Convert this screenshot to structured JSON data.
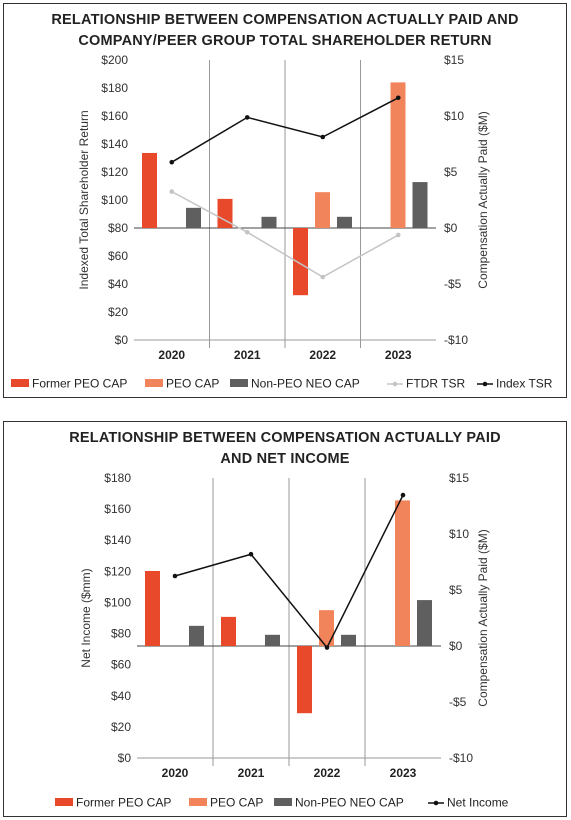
{
  "colors": {
    "former_peo": "#e8492b",
    "peo": "#f2845c",
    "non_peo": "#5f5f5f",
    "ftdr_tsr": "#c4c4c4",
    "index_line": "#111111"
  },
  "chart_data": [
    {
      "type": "bar",
      "title_line1": "RELATIONSHIP BETWEEN COMPENSATION ACTUALLY PAID AND",
      "title_line2": "COMPANY/PEER GROUP TOTAL SHAREHOLDER RETURN",
      "categories": [
        "2020",
        "2021",
        "2022",
        "2023"
      ],
      "left_axis": {
        "label": "Indexed Total Shareholder Return",
        "ylim": [
          0,
          200
        ],
        "ticks": [
          0,
          20,
          40,
          60,
          80,
          100,
          120,
          140,
          160,
          180,
          200
        ],
        "tick_labels": [
          "$0",
          "$20",
          "$40",
          "$60",
          "$80",
          "$100",
          "$120",
          "$140",
          "$160",
          "$180",
          "$200"
        ]
      },
      "right_axis": {
        "label": "Compensation Actually Paid ($M)",
        "ylim": [
          -10,
          15
        ],
        "ticks": [
          -10,
          -5,
          0,
          5,
          10,
          15
        ],
        "tick_labels": [
          "-$10",
          "-$5",
          "$0",
          "$5",
          "$10",
          "$15"
        ]
      },
      "bar_series": [
        {
          "name": "Former PEO CAP",
          "color_key": "former_peo",
          "values": [
            6.7,
            2.6,
            -6.0,
            null
          ]
        },
        {
          "name": "PEO CAP",
          "color_key": "peo",
          "values": [
            null,
            null,
            3.2,
            13.0
          ]
        },
        {
          "name": "Non-PEO NEO CAP",
          "color_key": "non_peo",
          "values": [
            1.8,
            1.0,
            1.0,
            4.1
          ]
        }
      ],
      "line_series": [
        {
          "name": "FTDR TSR",
          "color_key": "ftdr_tsr",
          "values": [
            106,
            77,
            45,
            75
          ]
        },
        {
          "name": "Index TSR",
          "color_key": "index_line",
          "values": [
            127,
            159,
            145,
            173
          ]
        }
      ],
      "legend": [
        "Former PEO CAP",
        "PEO CAP",
        "Non-PEO NEO CAP",
        "FTDR TSR",
        "Index TSR"
      ],
      "legend_position": "bottom",
      "grid": "vertical separators"
    },
    {
      "type": "bar",
      "title_line1": "RELATIONSHIP BETWEEN COMPENSATION ACTUALLY PAID",
      "title_line2": "AND NET INCOME",
      "categories": [
        "2020",
        "2021",
        "2022",
        "2023"
      ],
      "left_axis": {
        "label": "Net Income ($mm)",
        "ylim": [
          0,
          180
        ],
        "ticks": [
          0,
          20,
          40,
          60,
          80,
          100,
          120,
          140,
          160,
          180
        ],
        "tick_labels": [
          "$0",
          "$20",
          "$40",
          "$60",
          "$80",
          "$100",
          "$120",
          "$140",
          "$160",
          "$180"
        ]
      },
      "right_axis": {
        "label": "Compensation Actually Paid ($M)",
        "ylim": [
          -10,
          15
        ],
        "ticks": [
          -10,
          -5,
          0,
          5,
          10,
          15
        ],
        "tick_labels": [
          "-$10",
          "-$5",
          "$0",
          "$5",
          "$10",
          "$15"
        ]
      },
      "bar_series": [
        {
          "name": "Former PEO CAP",
          "color_key": "former_peo",
          "values": [
            6.7,
            2.6,
            -6.0,
            null
          ]
        },
        {
          "name": "PEO CAP",
          "color_key": "peo",
          "values": [
            null,
            null,
            3.2,
            13.0
          ]
        },
        {
          "name": "Non-PEO NEO CAP",
          "color_key": "non_peo",
          "values": [
            1.8,
            1.0,
            1.0,
            4.1
          ]
        }
      ],
      "line_series": [
        {
          "name": "Net Income",
          "color_key": "index_line",
          "values": [
            117,
            131,
            71,
            169
          ]
        }
      ],
      "legend": [
        "Former PEO CAP",
        "PEO CAP",
        "Non-PEO NEO CAP",
        "Net Income"
      ],
      "legend_position": "bottom",
      "grid": "vertical separators"
    }
  ]
}
